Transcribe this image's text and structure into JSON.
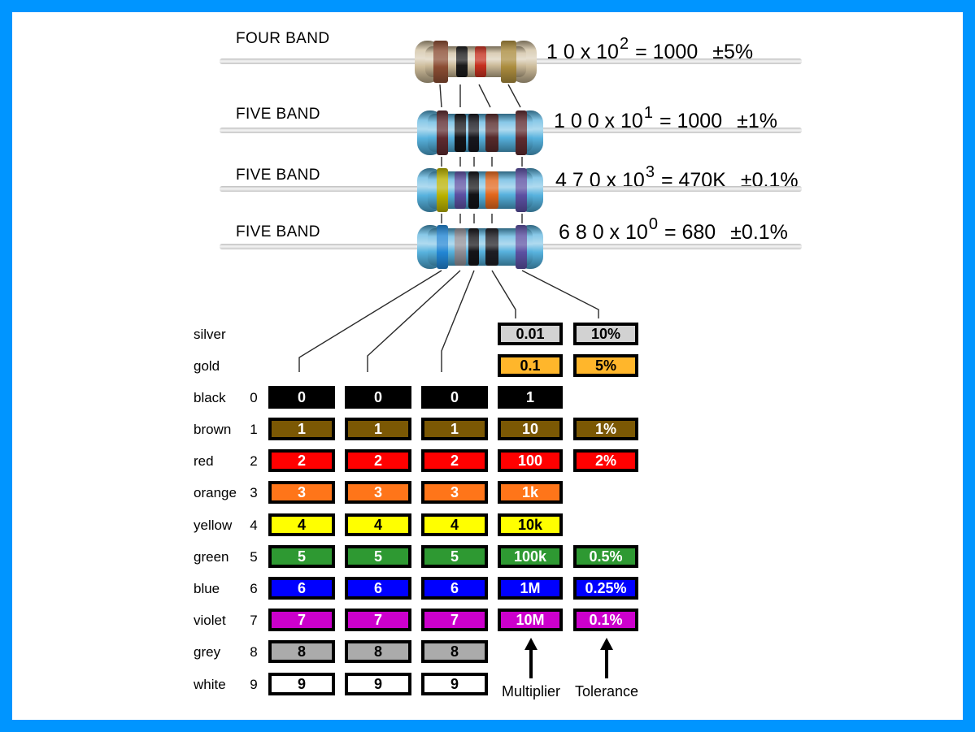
{
  "frame": {
    "border_color": "#0095FF",
    "background": "#FFFFFF"
  },
  "resistors": [
    {
      "label": "FOUR BAND",
      "type": "four-band",
      "body_hex": "#C9B794",
      "band_colors": [
        "brown",
        "black",
        "red",
        "gold"
      ],
      "band_hex": [
        "#8B4D33",
        "#1B1B1B",
        "#C5301F",
        "#AB8C3E"
      ],
      "formula": {
        "prefix": "1 0 x 10",
        "exponent": "2",
        "equals": "= 1000",
        "tolerance": "±5%"
      }
    },
    {
      "label": "FIVE BAND",
      "type": "five-band",
      "body_hex": "#4FAEDC",
      "band_colors": [
        "brown",
        "black",
        "black",
        "brown",
        "brown"
      ],
      "band_hex": [
        "#5E2B30",
        "#141418",
        "#17171E",
        "#572A2B",
        "#5E2B30"
      ],
      "formula": {
        "prefix": "1 0 0 x 10",
        "exponent": "1",
        "equals": "= 1000",
        "tolerance": "±1%"
      }
    },
    {
      "label": "FIVE BAND",
      "type": "five-band",
      "body_hex": "#4FAEDC",
      "band_colors": [
        "yellow",
        "violet",
        "black",
        "orange",
        "violet"
      ],
      "band_hex": [
        "#B8B100",
        "#5B50A2",
        "#121216",
        "#E2671D",
        "#5B50A2"
      ],
      "formula": {
        "prefix": "4 7 0 x 10",
        "exponent": "3",
        "equals": "= 470K",
        "tolerance": "±0.1%"
      }
    },
    {
      "label": "FIVE BAND",
      "type": "five-band",
      "body_hex": "#4FAEDC",
      "band_colors": [
        "blue",
        "grey",
        "black",
        "black",
        "violet"
      ],
      "band_hex": [
        "#2286D4",
        "#8E8E96",
        "#141418",
        "#1E1E24",
        "#5B50A2"
      ],
      "formula": {
        "prefix": "6 8 0 x 10",
        "exponent": "0",
        "equals": "= 680",
        "tolerance": "±0.1%"
      }
    }
  ],
  "table": {
    "column_roles": [
      "digit-1",
      "digit-2",
      "digit-3",
      "multiplier",
      "tolerance"
    ],
    "rows": [
      {
        "name": "silver",
        "digit": "",
        "bg": "#D2D2D2",
        "fg": "#000000",
        "cells": [
          null,
          null,
          null,
          "0.01",
          "10%"
        ]
      },
      {
        "name": "gold",
        "digit": "",
        "bg": "#FFB62B",
        "fg": "#000000",
        "cells": [
          null,
          null,
          null,
          "0.1",
          "5%"
        ]
      },
      {
        "name": "black",
        "digit": "0",
        "bg": "#000000",
        "fg": "#FFFFFF",
        "cells": [
          "0",
          "0",
          "0",
          "1",
          null
        ]
      },
      {
        "name": "brown",
        "digit": "1",
        "bg": "#7B5804",
        "fg": "#FFFFFF",
        "cells": [
          "1",
          "1",
          "1",
          "10",
          "1%"
        ]
      },
      {
        "name": "red",
        "digit": "2",
        "bg": "#FF0000",
        "fg": "#FFFFFF",
        "cells": [
          "2",
          "2",
          "2",
          "100",
          "2%"
        ]
      },
      {
        "name": "orange",
        "digit": "3",
        "bg": "#FF7519",
        "fg": "#FFFFFF",
        "cells": [
          "3",
          "3",
          "3",
          "1k",
          null
        ]
      },
      {
        "name": "yellow",
        "digit": "4",
        "bg": "#FFFF00",
        "fg": "#000000",
        "cells": [
          "4",
          "4",
          "4",
          "10k",
          null
        ]
      },
      {
        "name": "green",
        "digit": "5",
        "bg": "#2E9932",
        "fg": "#FFFFFF",
        "cells": [
          "5",
          "5",
          "5",
          "100k",
          "0.5%"
        ]
      },
      {
        "name": "blue",
        "digit": "6",
        "bg": "#0000FF",
        "fg": "#FFFFFF",
        "cells": [
          "6",
          "6",
          "6",
          "1M",
          "0.25%"
        ]
      },
      {
        "name": "violet",
        "digit": "7",
        "bg": "#CC00CC",
        "fg": "#FFFFFF",
        "cells": [
          "7",
          "7",
          "7",
          "10M",
          "0.1%"
        ]
      },
      {
        "name": "grey",
        "digit": "8",
        "bg": "#ABABAB",
        "fg": "#000000",
        "cells": [
          "8",
          "8",
          "8",
          null,
          null
        ]
      },
      {
        "name": "white",
        "digit": "9",
        "bg": "#FFFFFF",
        "fg": "#000000",
        "cells": [
          "9",
          "9",
          "9",
          null,
          null
        ]
      }
    ],
    "multiplier_label": "Multiplier",
    "tolerance_label": "Tolerance"
  }
}
